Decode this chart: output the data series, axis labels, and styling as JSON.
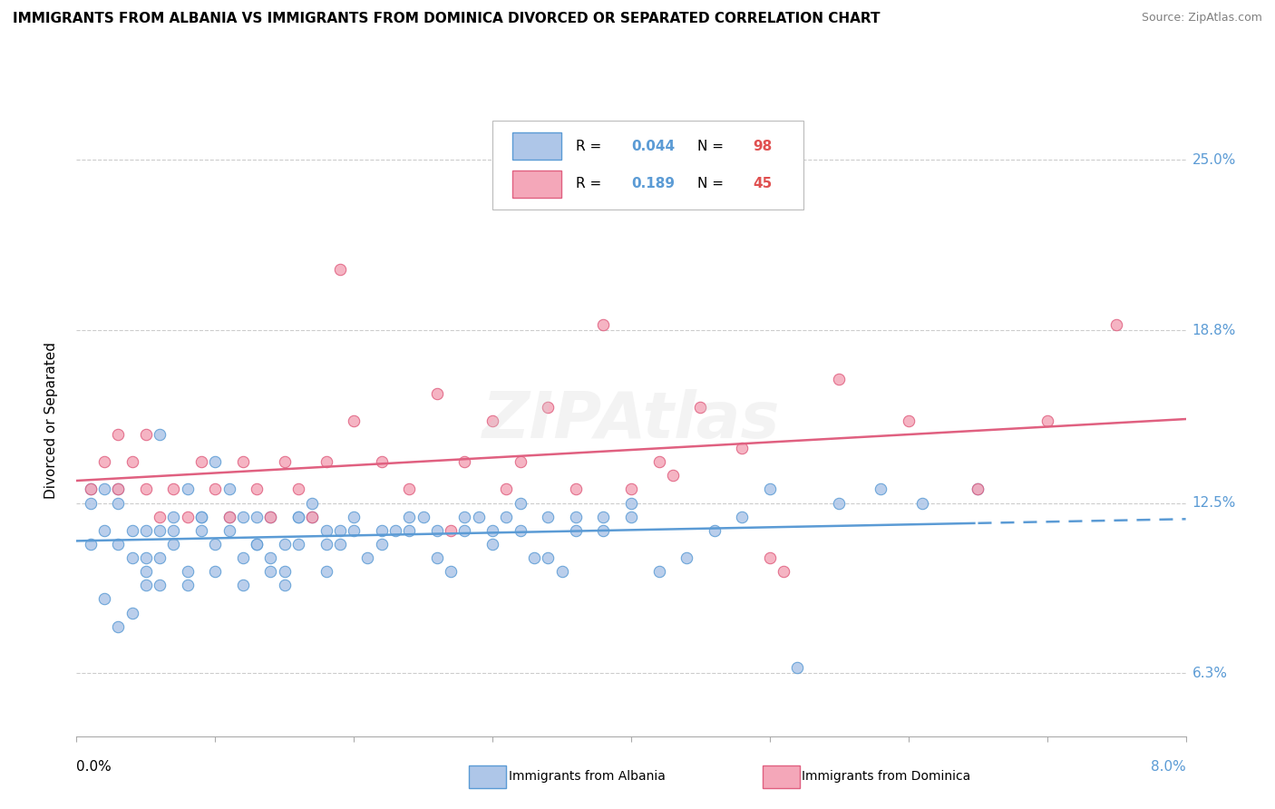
{
  "title": "IMMIGRANTS FROM ALBANIA VS IMMIGRANTS FROM DOMINICA DIVORCED OR SEPARATED CORRELATION CHART",
  "source": "Source: ZipAtlas.com",
  "ylabel": "Divorced or Separated",
  "xlim": [
    0.0,
    0.08
  ],
  "ylim": [
    0.04,
    0.27
  ],
  "yticks": [
    0.063,
    0.125,
    0.188,
    0.25
  ],
  "ytick_labels": [
    "6.3%",
    "12.5%",
    "18.8%",
    "25.0%"
  ],
  "xticks": [
    0.0,
    0.01,
    0.02,
    0.03,
    0.04,
    0.05,
    0.06,
    0.07,
    0.08
  ],
  "xtick_labels": [
    "0.0%",
    "",
    "",
    "",
    "",
    "",
    "",
    "",
    "8.0%"
  ],
  "albania_fill": "#aec6e8",
  "albania_edge": "#5b9bd5",
  "dominica_fill": "#f4a7b9",
  "dominica_edge": "#e06080",
  "albania_line": "#5b9bd5",
  "dominica_line": "#e06080",
  "r_albania": 0.044,
  "n_albania": 98,
  "r_dominica": 0.189,
  "n_dominica": 45,
  "tick_label_color": "#5b9bd5",
  "albania_scatter_x": [
    0.001,
    0.001,
    0.002,
    0.002,
    0.003,
    0.003,
    0.003,
    0.004,
    0.004,
    0.005,
    0.005,
    0.005,
    0.006,
    0.006,
    0.006,
    0.007,
    0.007,
    0.008,
    0.008,
    0.009,
    0.009,
    0.01,
    0.01,
    0.011,
    0.011,
    0.012,
    0.012,
    0.013,
    0.013,
    0.014,
    0.014,
    0.015,
    0.015,
    0.016,
    0.016,
    0.017,
    0.018,
    0.018,
    0.019,
    0.02,
    0.021,
    0.022,
    0.023,
    0.024,
    0.025,
    0.026,
    0.027,
    0.028,
    0.029,
    0.03,
    0.031,
    0.032,
    0.033,
    0.034,
    0.035,
    0.036,
    0.038,
    0.04,
    0.042,
    0.044,
    0.046,
    0.048,
    0.05,
    0.052,
    0.055,
    0.058,
    0.061,
    0.065,
    0.001,
    0.002,
    0.003,
    0.004,
    0.005,
    0.006,
    0.007,
    0.008,
    0.009,
    0.01,
    0.011,
    0.012,
    0.013,
    0.014,
    0.015,
    0.016,
    0.017,
    0.018,
    0.019,
    0.02,
    0.022,
    0.024,
    0.026,
    0.028,
    0.03,
    0.032,
    0.034,
    0.036,
    0.038,
    0.04
  ],
  "albania_scatter_y": [
    0.125,
    0.13,
    0.115,
    0.13,
    0.11,
    0.125,
    0.13,
    0.105,
    0.115,
    0.1,
    0.105,
    0.115,
    0.095,
    0.105,
    0.115,
    0.115,
    0.12,
    0.1,
    0.095,
    0.115,
    0.12,
    0.1,
    0.11,
    0.115,
    0.12,
    0.095,
    0.105,
    0.11,
    0.12,
    0.105,
    0.12,
    0.1,
    0.11,
    0.11,
    0.12,
    0.12,
    0.1,
    0.11,
    0.11,
    0.115,
    0.105,
    0.11,
    0.115,
    0.115,
    0.12,
    0.105,
    0.1,
    0.115,
    0.12,
    0.115,
    0.12,
    0.125,
    0.105,
    0.105,
    0.1,
    0.115,
    0.12,
    0.125,
    0.1,
    0.105,
    0.115,
    0.12,
    0.13,
    0.065,
    0.125,
    0.13,
    0.125,
    0.13,
    0.11,
    0.09,
    0.08,
    0.085,
    0.095,
    0.15,
    0.11,
    0.13,
    0.12,
    0.14,
    0.13,
    0.12,
    0.11,
    0.1,
    0.095,
    0.12,
    0.125,
    0.115,
    0.115,
    0.12,
    0.115,
    0.12,
    0.115,
    0.12,
    0.11,
    0.115,
    0.12,
    0.12,
    0.115,
    0.12
  ],
  "dominica_scatter_x": [
    0.001,
    0.002,
    0.003,
    0.003,
    0.004,
    0.005,
    0.005,
    0.006,
    0.007,
    0.008,
    0.009,
    0.01,
    0.011,
    0.012,
    0.013,
    0.014,
    0.015,
    0.016,
    0.017,
    0.018,
    0.019,
    0.02,
    0.022,
    0.024,
    0.026,
    0.028,
    0.03,
    0.032,
    0.034,
    0.036,
    0.038,
    0.04,
    0.042,
    0.045,
    0.048,
    0.051,
    0.055,
    0.06,
    0.065,
    0.07,
    0.075,
    0.031,
    0.027,
    0.043,
    0.05
  ],
  "dominica_scatter_y": [
    0.13,
    0.14,
    0.15,
    0.13,
    0.14,
    0.13,
    0.15,
    0.12,
    0.13,
    0.12,
    0.14,
    0.13,
    0.12,
    0.14,
    0.13,
    0.12,
    0.14,
    0.13,
    0.12,
    0.14,
    0.21,
    0.155,
    0.14,
    0.13,
    0.165,
    0.14,
    0.155,
    0.14,
    0.16,
    0.13,
    0.19,
    0.13,
    0.14,
    0.16,
    0.145,
    0.1,
    0.17,
    0.155,
    0.13,
    0.155,
    0.19,
    0.13,
    0.115,
    0.135,
    0.105
  ],
  "watermark": "ZIPAtlas"
}
